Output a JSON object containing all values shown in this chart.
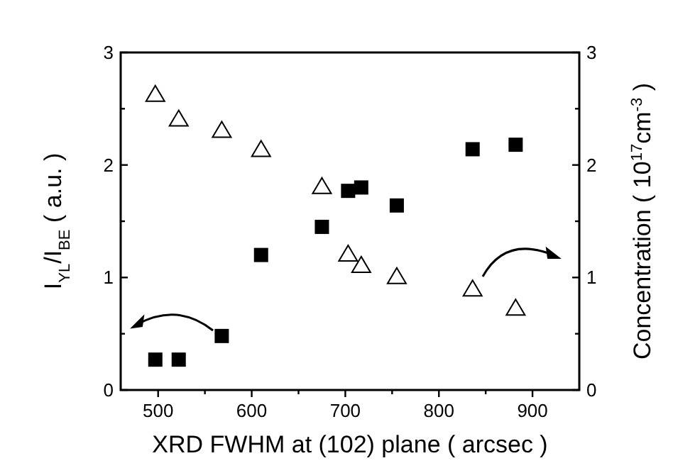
{
  "chart_data": {
    "type": "scatter",
    "xlabel": "XRD FWHM at (102) plane ( arcsec )",
    "ylabel": "I$_{YL}$/I$_{BE}$ ( a.u. )",
    "y2label": "Concentration ( 10$^{17}$cm$^{-3}$ )",
    "xlim": [
      460,
      950
    ],
    "xticks": [
      500,
      {
        "value": 550,
        "label": null
      },
      600,
      {
        "value": 650,
        "label": null
      },
      700,
      {
        "value": 750,
        "label": null
      },
      800,
      {
        "value": 850,
        "label": null
      },
      900
    ],
    "ylim": [
      0,
      3
    ],
    "yticks": [
      0,
      {
        "value": 0.5,
        "label": null
      },
      1,
      {
        "value": 1.5,
        "label": null
      },
      2,
      {
        "value": 2.5,
        "label": null
      },
      3
    ],
    "y2lim": [
      0,
      3
    ],
    "y2ticks": [
      0,
      {
        "value": 0.5,
        "label": null
      },
      1,
      {
        "value": 1.5,
        "label": null
      },
      2,
      {
        "value": 2.5,
        "label": null
      },
      3
    ],
    "grid": false,
    "series": [
      {
        "color": "#000000",
        "marker": "square",
        "x": [
          497,
          522,
          568,
          610,
          675,
          703,
          717,
          755,
          836,
          882
        ],
        "values": [
          0.27,
          0.27,
          0.48,
          1.2,
          1.45,
          1.77,
          1.8,
          1.64,
          2.14,
          2.18
        ]
      },
      {
        "color": "#000000",
        "marker": "triangle",
        "x": [
          497,
          522,
          568,
          610,
          675,
          703,
          717,
          755,
          836,
          882
        ],
        "values": [
          2.63,
          2.41,
          2.31,
          2.14,
          1.81,
          1.21,
          1.11,
          1.01,
          0.9,
          0.73
        ]
      }
    ]
  }
}
